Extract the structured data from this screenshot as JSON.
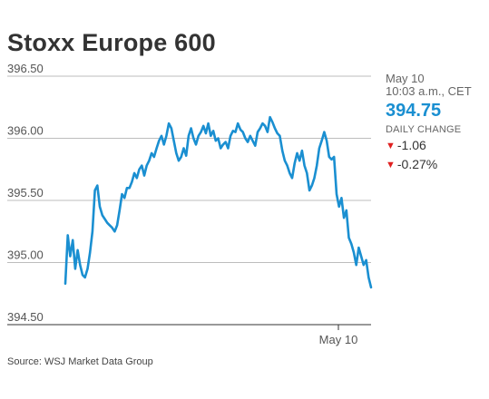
{
  "chart_data": {
    "type": "line",
    "title": "Stoxx Europe 600",
    "xlabel": "",
    "ylabel": "",
    "ylim": [
      394.5,
      396.5
    ],
    "yticks": [
      "396.50",
      "396.00",
      "395.50",
      "395.00",
      "394.50"
    ],
    "xticks": [
      "May 10"
    ],
    "grid": true,
    "series_color": "#1a8fd1",
    "series": [
      {
        "values": [
          394.83,
          395.22,
          395.05,
          395.18,
          394.95,
          395.1,
          394.98,
          394.9,
          394.88,
          394.95,
          395.08,
          395.25,
          395.58,
          395.62,
          395.45,
          395.38,
          395.35,
          395.32,
          395.3,
          395.28,
          395.25,
          395.3,
          395.42,
          395.55,
          395.52,
          395.6,
          395.6,
          395.65,
          395.72,
          395.68,
          395.75,
          395.78,
          395.7,
          395.78,
          395.82,
          395.88,
          395.85,
          395.92,
          395.98,
          396.02,
          395.95,
          396.02,
          396.12,
          396.08,
          395.98,
          395.88,
          395.82,
          395.85,
          395.92,
          395.86,
          396.02,
          396.08,
          396.0,
          395.95,
          396.02,
          396.05,
          396.1,
          396.04,
          396.12,
          396.02,
          396.06,
          395.98,
          396.0,
          395.92,
          395.95,
          395.97,
          395.92,
          396.02,
          396.06,
          396.05,
          396.12,
          396.07,
          396.05,
          396.0,
          395.97,
          396.02,
          395.98,
          395.94,
          396.05,
          396.08,
          396.12,
          396.1,
          396.05,
          396.17,
          396.13,
          396.08,
          396.04,
          396.02,
          395.9,
          395.82,
          395.78,
          395.72,
          395.68,
          395.8,
          395.88,
          395.82,
          395.9,
          395.78,
          395.72,
          395.58,
          395.62,
          395.68,
          395.78,
          395.92,
          395.98,
          396.05,
          395.98,
          395.85,
          395.83,
          395.85,
          395.55,
          395.45,
          395.52,
          395.36,
          395.42,
          395.2,
          395.15,
          395.08,
          394.98,
          395.12,
          395.05,
          394.98,
          395.02,
          394.88,
          394.8
        ]
      }
    ]
  },
  "info": {
    "date": "May 10",
    "time": "10:03 a.m., CET",
    "value": "394.75",
    "daily_change_label": "DAILY CHANGE",
    "change_points": "-1.06",
    "change_percent": "-0.27%",
    "down_color": "#e02020"
  },
  "source": "Source: WSJ Market Data Group"
}
